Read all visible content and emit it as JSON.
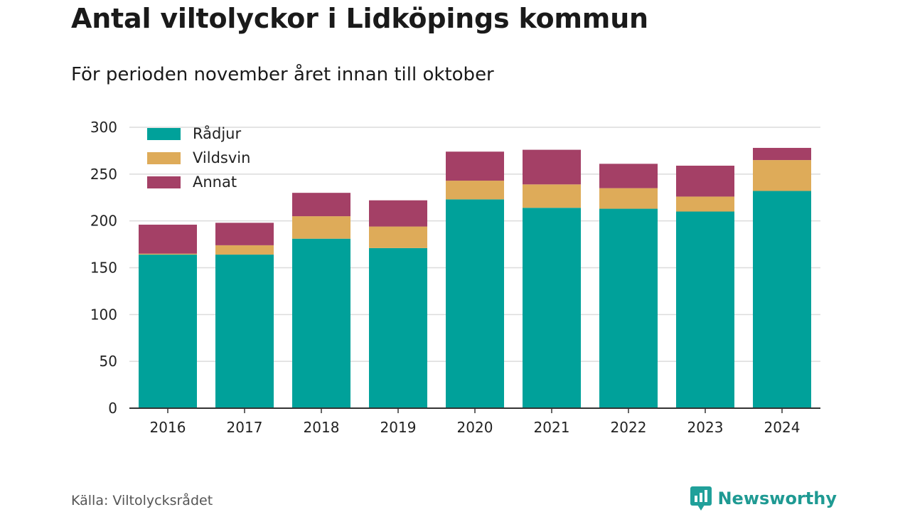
{
  "title": "Antal viltolyckor i Lidköpings kommun",
  "subtitle": "För perioden november året innan till oktober",
  "source": "Källa: Viltolycksrådet",
  "brand": {
    "name": "Newsworthy",
    "icon": "newsworthy-logo-icon",
    "color": "#20a09a"
  },
  "chart_data": {
    "type": "bar",
    "stacked": true,
    "categories": [
      "2016",
      "2017",
      "2018",
      "2019",
      "2020",
      "2021",
      "2022",
      "2023",
      "2024"
    ],
    "series": [
      {
        "name": "Rådjur",
        "color": "#00a19a",
        "values": [
          164,
          164,
          181,
          171,
          223,
          214,
          213,
          210,
          232
        ]
      },
      {
        "name": "Vildsvin",
        "color": "#deab59",
        "values": [
          1,
          10,
          24,
          23,
          20,
          25,
          22,
          16,
          33
        ]
      },
      {
        "name": "Annat",
        "color": "#a44066",
        "values": [
          31,
          24,
          25,
          28,
          31,
          37,
          26,
          33,
          13
        ]
      }
    ],
    "ylim": [
      0,
      300
    ],
    "yticks": [
      0,
      50,
      100,
      150,
      200,
      250,
      300
    ],
    "grid": true,
    "legend": "top-left",
    "xlabel": "",
    "ylabel": ""
  }
}
